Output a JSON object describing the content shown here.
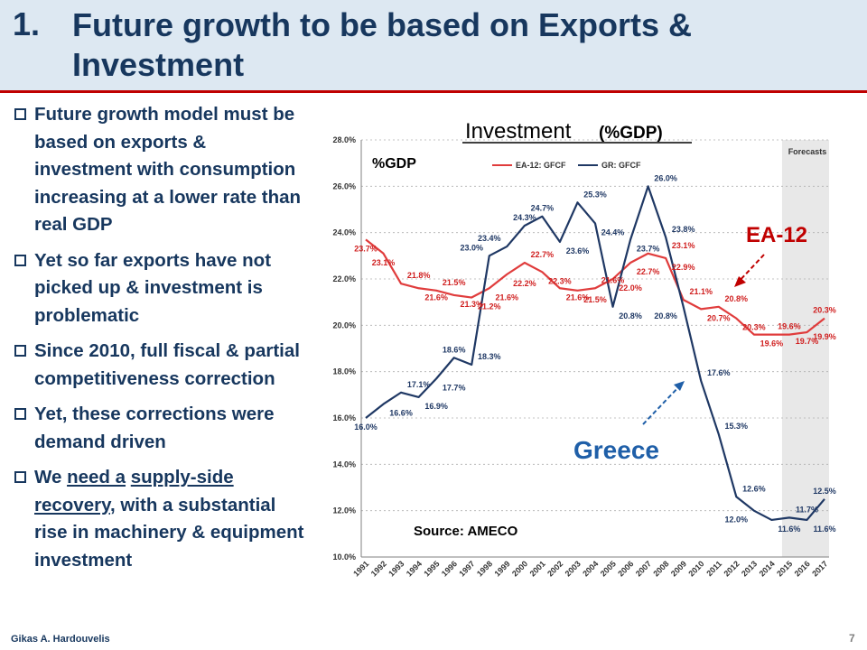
{
  "slide": {
    "title_number": "1.",
    "title": "Future growth to be based on Exports & Investment",
    "bullets": [
      {
        "segments": [
          {
            "text": "Future growth model must be based on exports & investment with consumption increasing at a lower rate than real GDP"
          }
        ]
      },
      {
        "segments": [
          {
            "text": "Yet so far exports have not picked up & investment is problematic"
          }
        ]
      },
      {
        "segments": [
          {
            "text": "Since 2010, full fiscal & partial competitiveness correction"
          }
        ]
      },
      {
        "segments": [
          {
            "text": " Yet, these corrections were demand driven"
          }
        ]
      },
      {
        "segments": [
          {
            "text": "We "
          },
          {
            "text": "need a",
            "u": true
          },
          {
            "text": " "
          },
          {
            "text": "supply-side recovery",
            "u": true
          },
          {
            "text": ", with a  substantial rise in machinery & equipment investment"
          }
        ]
      }
    ],
    "footer_author": "Gikas A. Hardouvelis",
    "page_number": "7"
  },
  "chart_data": {
    "type": "line",
    "title": "Investment",
    "title_suffix": "(%GDP)",
    "ylabel_inside": "%GDP",
    "x": [
      "1991",
      "1992",
      "1993",
      "1994",
      "1995",
      "1996",
      "1997",
      "1998",
      "1999",
      "2000",
      "2001",
      "2002",
      "2003",
      "2004",
      "2005",
      "2006",
      "2007",
      "2008",
      "2009",
      "2010",
      "2011",
      "2012",
      "2013",
      "2014",
      "2015",
      "2016",
      "2017"
    ],
    "ylim": [
      10,
      28
    ],
    "yticks": [
      "10.0%",
      "12.0%",
      "14.0%",
      "16.0%",
      "18.0%",
      "20.0%",
      "22.0%",
      "24.0%",
      "26.0%",
      "28.0%"
    ],
    "grid": true,
    "legend_position": "top",
    "forecast_label": "Forecasts",
    "forecast_start": "2015",
    "series": [
      {
        "name": "EA-12: GFCF",
        "color": "#e03c3c",
        "values": [
          23.7,
          23.1,
          21.8,
          21.6,
          21.5,
          21.3,
          21.2,
          21.6,
          22.2,
          22.7,
          22.3,
          21.6,
          21.5,
          21.6,
          22.0,
          22.7,
          23.1,
          22.9,
          21.1,
          20.7,
          20.8,
          20.3,
          19.6,
          19.6,
          19.6,
          19.7,
          20.3
        ],
        "labels": [
          {
            "x": "1991",
            "text": "23.7%",
            "pos": "below"
          },
          {
            "x": "1992",
            "text": "23.1%",
            "pos": "below"
          },
          {
            "x": "1994",
            "text": "21.8%",
            "pos": "above"
          },
          {
            "x": "1995",
            "text": "21.6%",
            "pos": "below"
          },
          {
            "x": "1996",
            "text": "21.5%",
            "pos": "above"
          },
          {
            "x": "1997",
            "text": "21.3%",
            "pos": "below"
          },
          {
            "x": "1998",
            "text": "21.2%",
            "pos": "below"
          },
          {
            "x": "1999",
            "text": "21.6%",
            "pos": "below"
          },
          {
            "x": "2000",
            "text": "22.2%",
            "pos": "below"
          },
          {
            "x": "2001",
            "text": "22.7%",
            "pos": "above"
          },
          {
            "x": "2002",
            "text": "22.3%",
            "pos": "below"
          },
          {
            "x": "2003",
            "text": "21.6%",
            "pos": "below"
          },
          {
            "x": "2004",
            "text": "21.5%",
            "pos": "below"
          },
          {
            "x": "2005",
            "text": "21.6%",
            "pos": "above"
          },
          {
            "x": "2006",
            "text": "22.0%",
            "pos": "below"
          },
          {
            "x": "2007",
            "text": "22.7%",
            "pos": "below"
          },
          {
            "x": "2009",
            "text": "23.1%",
            "pos": "above"
          },
          {
            "x": "2009",
            "text": "22.9%",
            "pos": "below"
          },
          {
            "x": "2010",
            "text": "21.1%",
            "pos": "above"
          },
          {
            "x": "2011",
            "text": "20.7%",
            "pos": "below"
          },
          {
            "x": "2012",
            "text": "20.8%",
            "pos": "above"
          },
          {
            "x": "2013",
            "text": "20.3%",
            "pos": "below"
          },
          {
            "x": "2014",
            "text": "19.6%",
            "pos": "below"
          },
          {
            "x": "2015",
            "text": "19.6%",
            "pos": "above"
          },
          {
            "x": "2016",
            "text": "19.7%",
            "pos": "below"
          },
          {
            "x": "2017",
            "text": "20.3%",
            "pos": "above"
          },
          {
            "x": "2017",
            "text": "19.9%",
            "pos": "below"
          }
        ]
      },
      {
        "name": "GR: GFCF",
        "color": "#1f3864",
        "values": [
          16.0,
          16.6,
          17.1,
          16.9,
          17.7,
          18.6,
          18.3,
          23.0,
          23.4,
          24.3,
          24.7,
          23.6,
          25.3,
          24.4,
          20.8,
          23.7,
          26.0,
          23.8,
          20.8,
          17.6,
          15.3,
          12.6,
          12.0,
          11.6,
          11.7,
          11.6,
          12.5
        ],
        "labels": [
          {
            "x": "1991",
            "text": "16.0%",
            "pos": "below"
          },
          {
            "x": "1993",
            "text": "16.6%",
            "pos": "below"
          },
          {
            "x": "1994",
            "text": "17.1%",
            "pos": "above"
          },
          {
            "x": "1995",
            "text": "16.9%",
            "pos": "below"
          },
          {
            "x": "1996",
            "text": "17.7%",
            "pos": "below"
          },
          {
            "x": "1996",
            "text": "18.6%",
            "pos": "above"
          },
          {
            "x": "1998",
            "text": "18.3%",
            "pos": "above"
          },
          {
            "x": "1997",
            "text": "23.0%",
            "pos": "above"
          },
          {
            "x": "1998",
            "text": "23.4%",
            "pos": "above"
          },
          {
            "x": "2000",
            "text": "24.3%",
            "pos": "above"
          },
          {
            "x": "2001",
            "text": "24.7%",
            "pos": "above"
          },
          {
            "x": "2003",
            "text": "23.6%",
            "pos": "below"
          },
          {
            "x": "2004",
            "text": "25.3%",
            "pos": "above"
          },
          {
            "x": "2005",
            "text": "24.4%",
            "pos": "below"
          },
          {
            "x": "2006",
            "text": "20.8%",
            "pos": "below"
          },
          {
            "x": "2007",
            "text": "23.7%",
            "pos": "below"
          },
          {
            "x": "2008",
            "text": "26.0%",
            "pos": "above"
          },
          {
            "x": "2009",
            "text": "23.8%",
            "pos": "above"
          },
          {
            "x": "2008",
            "text": "20.8%",
            "pos": "below"
          },
          {
            "x": "2011",
            "text": "17.6%",
            "pos": "above"
          },
          {
            "x": "2012",
            "text": "15.3%",
            "pos": "above"
          },
          {
            "x": "2013",
            "text": "12.6%",
            "pos": "above"
          },
          {
            "x": "2012",
            "text": "12.0%",
            "pos": "below"
          },
          {
            "x": "2015",
            "text": "11.6%",
            "pos": "below"
          },
          {
            "x": "2016",
            "text": "11.7%",
            "pos": "above"
          },
          {
            "x": "2017",
            "text": "11.6%",
            "pos": "below"
          },
          {
            "x": "2017",
            "text": "12.5%",
            "pos": "above"
          }
        ]
      }
    ],
    "annotations": [
      {
        "text": "EA-12",
        "color": "#c00000"
      },
      {
        "text": "Greece",
        "color": "#1f5fa8"
      },
      {
        "text": "Source: AMECO",
        "color": "#000000"
      }
    ]
  }
}
